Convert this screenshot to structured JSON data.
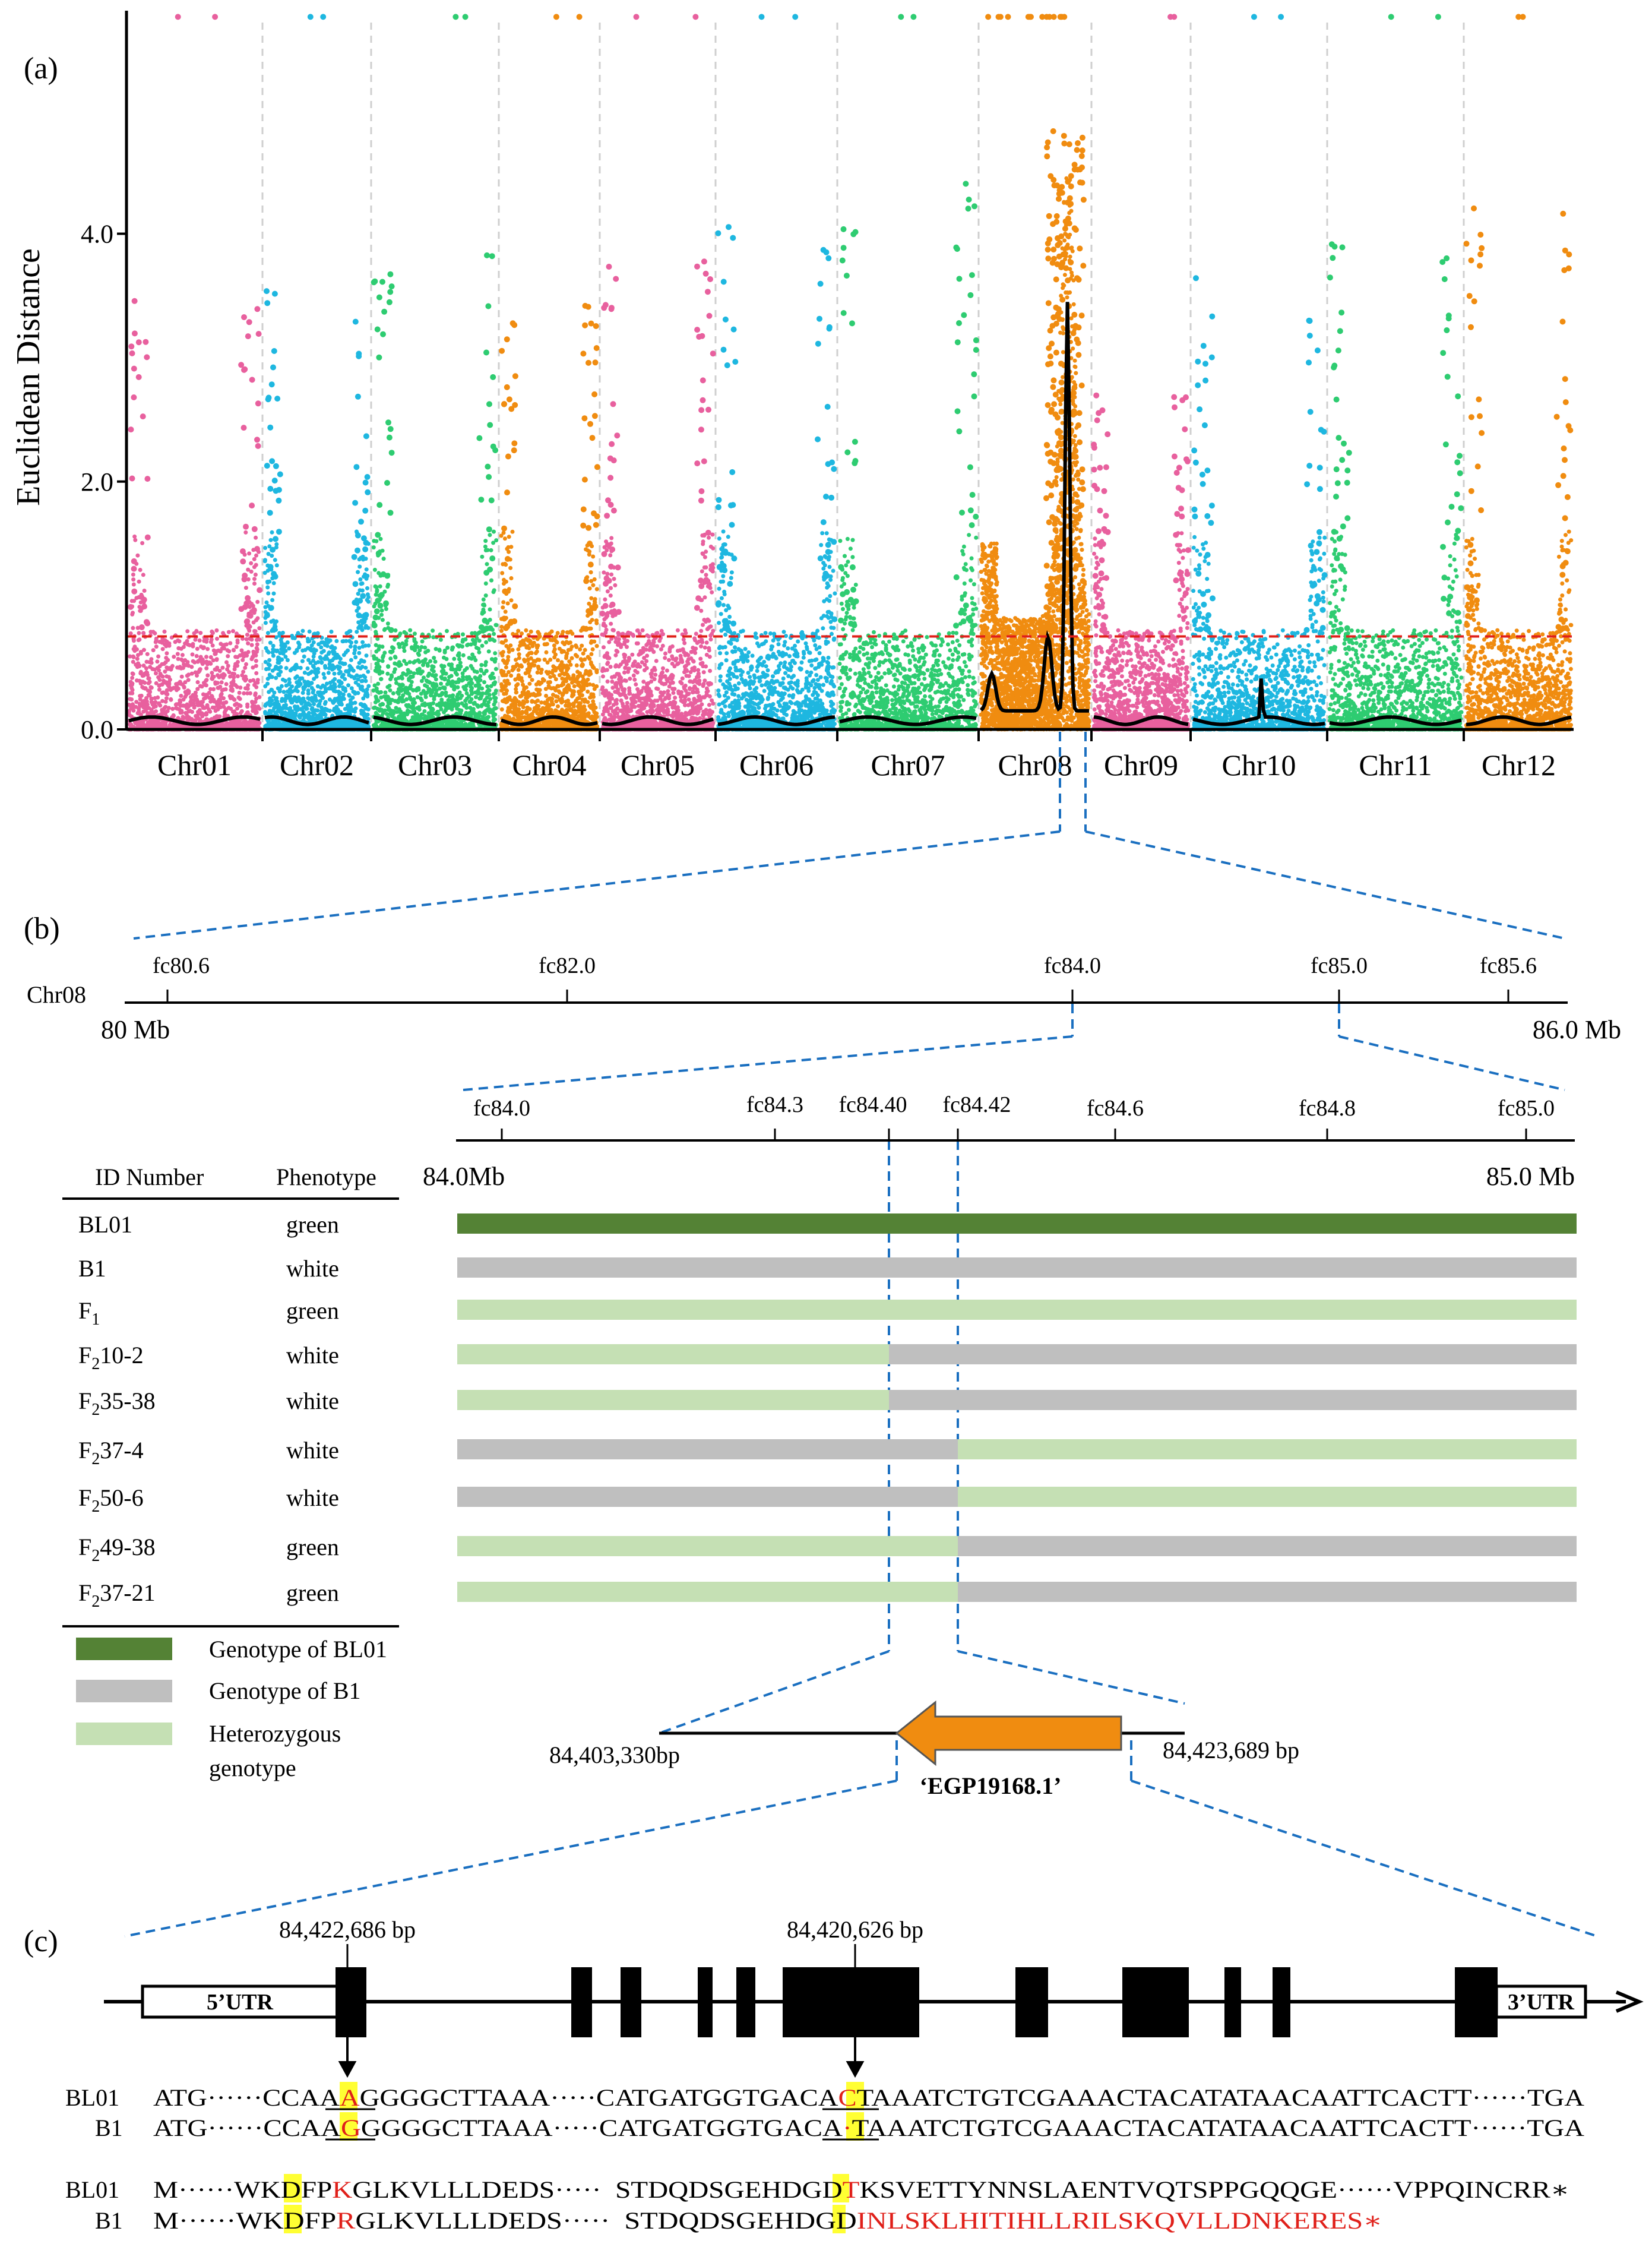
{
  "colors": {
    "pink": "#e8609e",
    "blue": "#1eb7e0",
    "green": "#2ecc71",
    "orange": "#f08c10",
    "threshold": "#e0201a",
    "guide": "#1a6fc0",
    "bl01_bar": "#548235",
    "b1_bar": "#bfbfbf",
    "het_bar": "#c5e0b4",
    "gene_arrow": "#f08c10",
    "highlight": "#ffff33",
    "mutant_red": "#e0201a"
  },
  "panel_a": {
    "label": "(a)",
    "chart_data": {
      "type": "scatter",
      "title": "",
      "ylabel": "Euclidean Distance",
      "xlabel": "",
      "ylim": [
        0,
        5.8
      ],
      "yticks": [
        "0.0",
        "2.0",
        "4.0"
      ],
      "ytick_values": [
        0,
        2,
        4
      ],
      "threshold": 0.75,
      "categories": [
        "Chr01",
        "Chr02",
        "Chr03",
        "Chr04",
        "Chr05",
        "Chr06",
        "Chr07",
        "Chr08",
        "Chr09",
        "Chr10",
        "Chr11",
        "Chr12"
      ],
      "series_colors": [
        "pink",
        "blue",
        "green",
        "orange",
        "pink",
        "blue",
        "green",
        "orange",
        "pink",
        "blue",
        "green",
        "orange"
      ],
      "peak_chromosome": "Chr08",
      "peak_smoothed_value": 3.5,
      "max_point_value": 4.85
    }
  },
  "panel_b": {
    "label": "(b)",
    "chrom_label": "Chr08",
    "top_markers": [
      "fc80.6",
      "fc82.0",
      "fc84.0",
      "fc85.0",
      "fc85.6"
    ],
    "top_start": "80 Mb",
    "top_end": "86.0 Mb",
    "zoom_markers": [
      "fc84.0",
      "fc84.3",
      "fc84.40",
      "fc84.42",
      "fc84.6",
      "fc84.8",
      "fc85.0"
    ],
    "zoom_start": "84.0Mb",
    "zoom_end": "85.0 Mb",
    "table_headers": [
      "ID Number",
      "Phenotype"
    ],
    "rows": [
      {
        "id": "BL01",
        "id_sub": "",
        "id_rest": "",
        "phenotype": "green",
        "segments": [
          "bl01",
          "bl01",
          "bl01"
        ]
      },
      {
        "id": "B1",
        "id_sub": "",
        "id_rest": "",
        "phenotype": "white",
        "segments": [
          "b1",
          "b1",
          "b1"
        ]
      },
      {
        "id": "F",
        "id_sub": "1",
        "id_rest": "",
        "phenotype": "green",
        "segments": [
          "het",
          "het",
          "het"
        ]
      },
      {
        "id": "F",
        "id_sub": "2",
        "id_rest": "10-2",
        "phenotype": "white",
        "segments": [
          "het",
          "b1",
          "b1"
        ]
      },
      {
        "id": "F",
        "id_sub": "2",
        "id_rest": "35-38",
        "phenotype": "white",
        "segments": [
          "het",
          "b1",
          "b1"
        ]
      },
      {
        "id": "F",
        "id_sub": "2",
        "id_rest": "37-4",
        "phenotype": "white",
        "segments": [
          "b1",
          "b1",
          "het"
        ]
      },
      {
        "id": "F",
        "id_sub": "2",
        "id_rest": "50-6",
        "phenotype": "white",
        "segments": [
          "b1",
          "b1",
          "het"
        ]
      },
      {
        "id": "F",
        "id_sub": "2",
        "id_rest": "49-38",
        "phenotype": "green",
        "segments": [
          "het",
          "het",
          "b1"
        ]
      },
      {
        "id": "F",
        "id_sub": "2",
        "id_rest": "37-21",
        "phenotype": "green",
        "segments": [
          "het",
          "het",
          "b1"
        ]
      }
    ],
    "legend": [
      {
        "key": "bl01",
        "lines": [
          "Genotype of BL01"
        ]
      },
      {
        "key": "b1",
        "lines": [
          "Genotype of B1"
        ]
      },
      {
        "key": "het",
        "lines": [
          "Heterozygous",
          "genotype"
        ]
      }
    ],
    "gene_start": "84,403,330bp",
    "gene_end": "84,423,689 bp",
    "gene_name": "‘EGP19168.1’"
  },
  "panel_c": {
    "label": "(c)",
    "pos1": "84,422,686 bp",
    "pos2": "84,420,626 bp",
    "utr5": "5’UTR",
    "utr3": "3’UTR",
    "dna": {
      "bl01_label": "BL01",
      "b1_label": "B1",
      "bl01": {
        "start": "ATG······CCAA",
        "snp": "A",
        "mid": "GGGGCTTAAA·····CATGATGGTGACA",
        "snp2": "C",
        "end": "TAAATCTGTCGAAACTACATATAACAATTCACTT······TGA"
      },
      "b1": {
        "start": "ATG······CCAA",
        "snp": "G",
        "mid": "GGGGCTTAAA·····CATGATGGTGACA",
        "snp2": "·",
        "end": "TAAATCTGTCGAAACTACATATAACAATTCACTT······TGA"
      }
    },
    "protein": {
      "bl01_label": "BL01",
      "b1_label": "B1",
      "bl01": {
        "start": "M······WKDFP",
        "aa": "K",
        "mid": "GLKVLLLDEDS·····  STDQDSGEHDGD",
        "aa2": "T",
        "end": "KSVETTYNNSLAENTVQTSPPGQQGE······VPPQINCRR∗"
      },
      "b1": {
        "start": "M······WKDFP",
        "aa": "R",
        "mid": "GLKVLLLDEDS·····  STDQDSGEHDGD",
        "aa2": "I",
        "end": "NLSKLHITIHLLRILSKQVLLDNKERES∗"
      }
    }
  }
}
